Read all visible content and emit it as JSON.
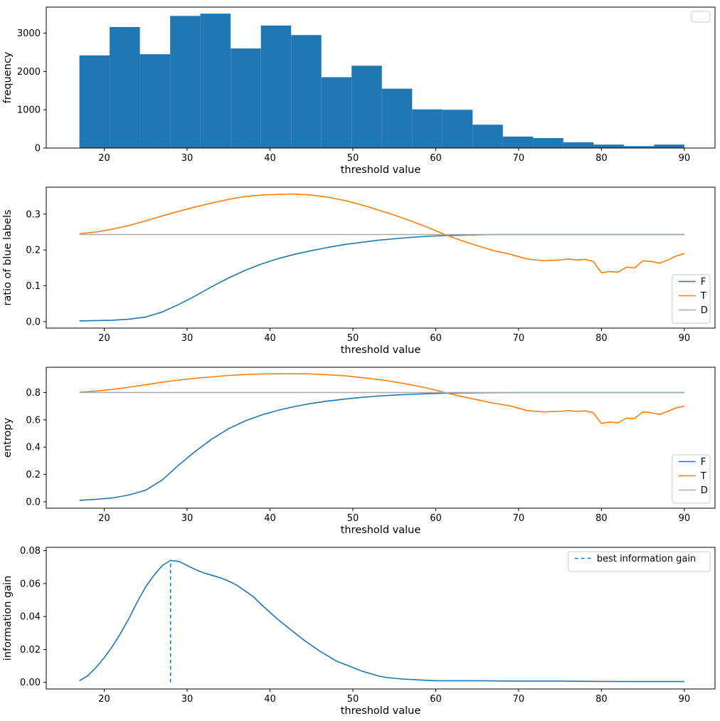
{
  "page": {
    "background": "#ffffff"
  },
  "chart_data": [
    {
      "type": "bar",
      "title": "",
      "xlabel": "threshold value",
      "ylabel": "frequency",
      "xlim": [
        13.0,
        93.7
      ],
      "ylim": [
        0,
        3680
      ],
      "xticks": [
        20,
        30,
        40,
        50,
        60,
        70,
        80,
        90
      ],
      "xtick_labels": [
        "20",
        "30",
        "40",
        "50",
        "60",
        "70",
        "80",
        "90"
      ],
      "yticks": [
        0,
        1000,
        2000,
        3000
      ],
      "ytick_labels": [
        "0",
        "1000",
        "2000",
        "3000"
      ],
      "bar_color": "#1f77b4",
      "bin_edges": [
        17,
        20.65,
        24.3,
        27.95,
        31.6,
        35.25,
        38.9,
        42.55,
        46.2,
        49.85,
        53.5,
        57.15,
        60.8,
        64.45,
        68.1,
        71.75,
        75.4,
        79.05,
        82.7,
        86.35,
        90
      ],
      "values": [
        2420,
        3160,
        2450,
        3450,
        3510,
        2600,
        3200,
        2950,
        1850,
        2150,
        1550,
        1010,
        1000,
        610,
        300,
        260,
        150,
        90,
        50,
        90
      ],
      "legend": {
        "position": "upper-right",
        "entries": []
      }
    },
    {
      "type": "line",
      "title": "",
      "xlabel": "threshold value",
      "ylabel": "ratio of blue labels",
      "xlim": [
        13.0,
        93.7
      ],
      "ylim": [
        -0.018,
        0.375
      ],
      "xticks": [
        20,
        30,
        40,
        50,
        60,
        70,
        80,
        90
      ],
      "xtick_labels": [
        "20",
        "30",
        "40",
        "50",
        "60",
        "70",
        "80",
        "90"
      ],
      "yticks": [
        0.0,
        0.1,
        0.2,
        0.3
      ],
      "ytick_labels": [
        "0.0",
        "0.1",
        "0.2",
        "0.3"
      ],
      "series": [
        {
          "name": "F",
          "color": "#1f77b4",
          "x": [
            17,
            19,
            21,
            23,
            25,
            27,
            29,
            31,
            33,
            35,
            37,
            39,
            41,
            43,
            45,
            47,
            49,
            51,
            53,
            55,
            57,
            59,
            61,
            63,
            65,
            67,
            70,
            75,
            80,
            85,
            90
          ],
          "y": [
            0.002,
            0.003,
            0.004,
            0.007,
            0.013,
            0.027,
            0.048,
            0.072,
            0.098,
            0.122,
            0.143,
            0.161,
            0.176,
            0.188,
            0.198,
            0.207,
            0.215,
            0.221,
            0.227,
            0.231,
            0.235,
            0.238,
            0.24,
            0.241,
            0.242,
            0.243,
            0.243,
            0.243,
            0.243,
            0.243,
            0.243
          ]
        },
        {
          "name": "T",
          "color": "#ff7f0e",
          "x": [
            17,
            19,
            21,
            23,
            25,
            27,
            29,
            31,
            33,
            35,
            37,
            39,
            41,
            43,
            45,
            47,
            49,
            51,
            53,
            55,
            57,
            59,
            61,
            63,
            65,
            67,
            69,
            71,
            73,
            75,
            76,
            77,
            78,
            79,
            80,
            81,
            82,
            83,
            84,
            85,
            86,
            87,
            88,
            89,
            90
          ],
          "y": [
            0.245,
            0.25,
            0.258,
            0.268,
            0.281,
            0.295,
            0.308,
            0.32,
            0.331,
            0.341,
            0.349,
            0.353,
            0.355,
            0.356,
            0.353,
            0.347,
            0.338,
            0.326,
            0.312,
            0.297,
            0.281,
            0.263,
            0.244,
            0.227,
            0.212,
            0.198,
            0.188,
            0.175,
            0.17,
            0.172,
            0.175,
            0.172,
            0.174,
            0.168,
            0.136,
            0.14,
            0.138,
            0.152,
            0.15,
            0.17,
            0.168,
            0.163,
            0.172,
            0.183,
            0.19
          ]
        },
        {
          "name": "D",
          "color": "#aaaaaa",
          "x": [
            17,
            90
          ],
          "y": [
            0.243,
            0.243
          ]
        }
      ],
      "legend": {
        "position": "lower-right",
        "entries": [
          {
            "label": "F",
            "color": "#1f77b4"
          },
          {
            "label": "T",
            "color": "#ff7f0e"
          },
          {
            "label": "D",
            "color": "#aaaaaa"
          }
        ]
      }
    },
    {
      "type": "line",
      "title": "",
      "xlabel": "threshold value",
      "ylabel": "entropy",
      "xlim": [
        13.0,
        93.7
      ],
      "ylim": [
        -0.047,
        0.985
      ],
      "xticks": [
        20,
        30,
        40,
        50,
        60,
        70,
        80,
        90
      ],
      "xtick_labels": [
        "20",
        "30",
        "40",
        "50",
        "60",
        "70",
        "80",
        "90"
      ],
      "yticks": [
        0.0,
        0.2,
        0.4,
        0.6,
        0.8
      ],
      "ytick_labels": [
        "0.0",
        "0.2",
        "0.4",
        "0.6",
        "0.8"
      ],
      "series": [
        {
          "name": "F",
          "color": "#1f77b4",
          "x": [
            17,
            19,
            21,
            23,
            25,
            27,
            29,
            31,
            33,
            35,
            37,
            39,
            41,
            43,
            45,
            47,
            49,
            51,
            53,
            55,
            57,
            59,
            61,
            63,
            65,
            67,
            70,
            75,
            80,
            85,
            90
          ],
          "y": [
            0.01,
            0.018,
            0.028,
            0.05,
            0.085,
            0.16,
            0.27,
            0.37,
            0.46,
            0.535,
            0.592,
            0.636,
            0.67,
            0.698,
            0.72,
            0.738,
            0.752,
            0.764,
            0.774,
            0.781,
            0.787,
            0.791,
            0.795,
            0.797,
            0.798,
            0.799,
            0.8,
            0.8,
            0.8,
            0.8,
            0.8
          ]
        },
        {
          "name": "T",
          "color": "#ff7f0e",
          "x": [
            17,
            19,
            21,
            23,
            25,
            27,
            29,
            31,
            33,
            35,
            37,
            39,
            41,
            43,
            45,
            47,
            49,
            51,
            53,
            55,
            57,
            59,
            61,
            63,
            65,
            67,
            69,
            71,
            73,
            75,
            76,
            77,
            78,
            79,
            80,
            81,
            82,
            83,
            84,
            85,
            86,
            87,
            88,
            89,
            90
          ],
          "y": [
            0.802,
            0.811,
            0.823,
            0.839,
            0.857,
            0.876,
            0.891,
            0.904,
            0.915,
            0.925,
            0.932,
            0.936,
            0.937,
            0.938,
            0.936,
            0.93,
            0.923,
            0.91,
            0.896,
            0.878,
            0.857,
            0.832,
            0.801,
            0.773,
            0.747,
            0.722,
            0.702,
            0.668,
            0.658,
            0.662,
            0.668,
            0.662,
            0.666,
            0.652,
            0.573,
            0.584,
            0.578,
            0.612,
            0.61,
            0.658,
            0.652,
            0.64,
            0.662,
            0.688,
            0.7
          ]
        },
        {
          "name": "D",
          "color": "#aaaaaa",
          "x": [
            17,
            90
          ],
          "y": [
            0.8,
            0.8
          ]
        }
      ],
      "legend": {
        "position": "lower-right",
        "entries": [
          {
            "label": "F",
            "color": "#1f77b4"
          },
          {
            "label": "T",
            "color": "#ff7f0e"
          },
          {
            "label": "D",
            "color": "#aaaaaa"
          }
        ]
      }
    },
    {
      "type": "line",
      "title": "",
      "xlabel": "threshold value",
      "ylabel": "information gain",
      "xlim": [
        13.0,
        93.7
      ],
      "ylim": [
        -0.004,
        0.082
      ],
      "xticks": [
        20,
        30,
        40,
        50,
        60,
        70,
        80,
        90
      ],
      "xtick_labels": [
        "20",
        "30",
        "40",
        "50",
        "60",
        "70",
        "80",
        "90"
      ],
      "yticks": [
        0.0,
        0.02,
        0.04,
        0.06,
        0.08
      ],
      "ytick_labels": [
        "0.00",
        "0.02",
        "0.04",
        "0.06",
        "0.08"
      ],
      "series": [
        {
          "name": "information gain",
          "color": "#1f77b4",
          "x": [
            17,
            18,
            19,
            20,
            21,
            22,
            23,
            24,
            25,
            26,
            27,
            28,
            29,
            30,
            31,
            32,
            33,
            34,
            35,
            36,
            37,
            38,
            39,
            40,
            41,
            42,
            43,
            44,
            45,
            46,
            47,
            48,
            49,
            50,
            51,
            52,
            53,
            54,
            55,
            56,
            58,
            60,
            62,
            65,
            70,
            75,
            80,
            85,
            90
          ],
          "y": [
            0.001,
            0.004,
            0.009,
            0.015,
            0.022,
            0.03,
            0.039,
            0.049,
            0.058,
            0.065,
            0.071,
            0.074,
            0.0735,
            0.071,
            0.0685,
            0.0665,
            0.065,
            0.0635,
            0.0615,
            0.059,
            0.0555,
            0.052,
            0.047,
            0.0425,
            0.038,
            0.034,
            0.03,
            0.026,
            0.0225,
            0.019,
            0.016,
            0.013,
            0.011,
            0.009,
            0.007,
            0.0055,
            0.004,
            0.003,
            0.0025,
            0.002,
            0.0015,
            0.001,
            0.001,
            0.001,
            0.0008,
            0.0008,
            0.0006,
            0.0005,
            0.0005
          ]
        }
      ],
      "vline": {
        "x": 28,
        "y0": 0.0,
        "y1": 0.0745,
        "color": "#1f77b4",
        "dash": true
      },
      "legend": {
        "position": "upper-right",
        "entries": [
          {
            "label": "best information gain",
            "color": "#1f77b4",
            "dash": true
          }
        ]
      }
    }
  ]
}
